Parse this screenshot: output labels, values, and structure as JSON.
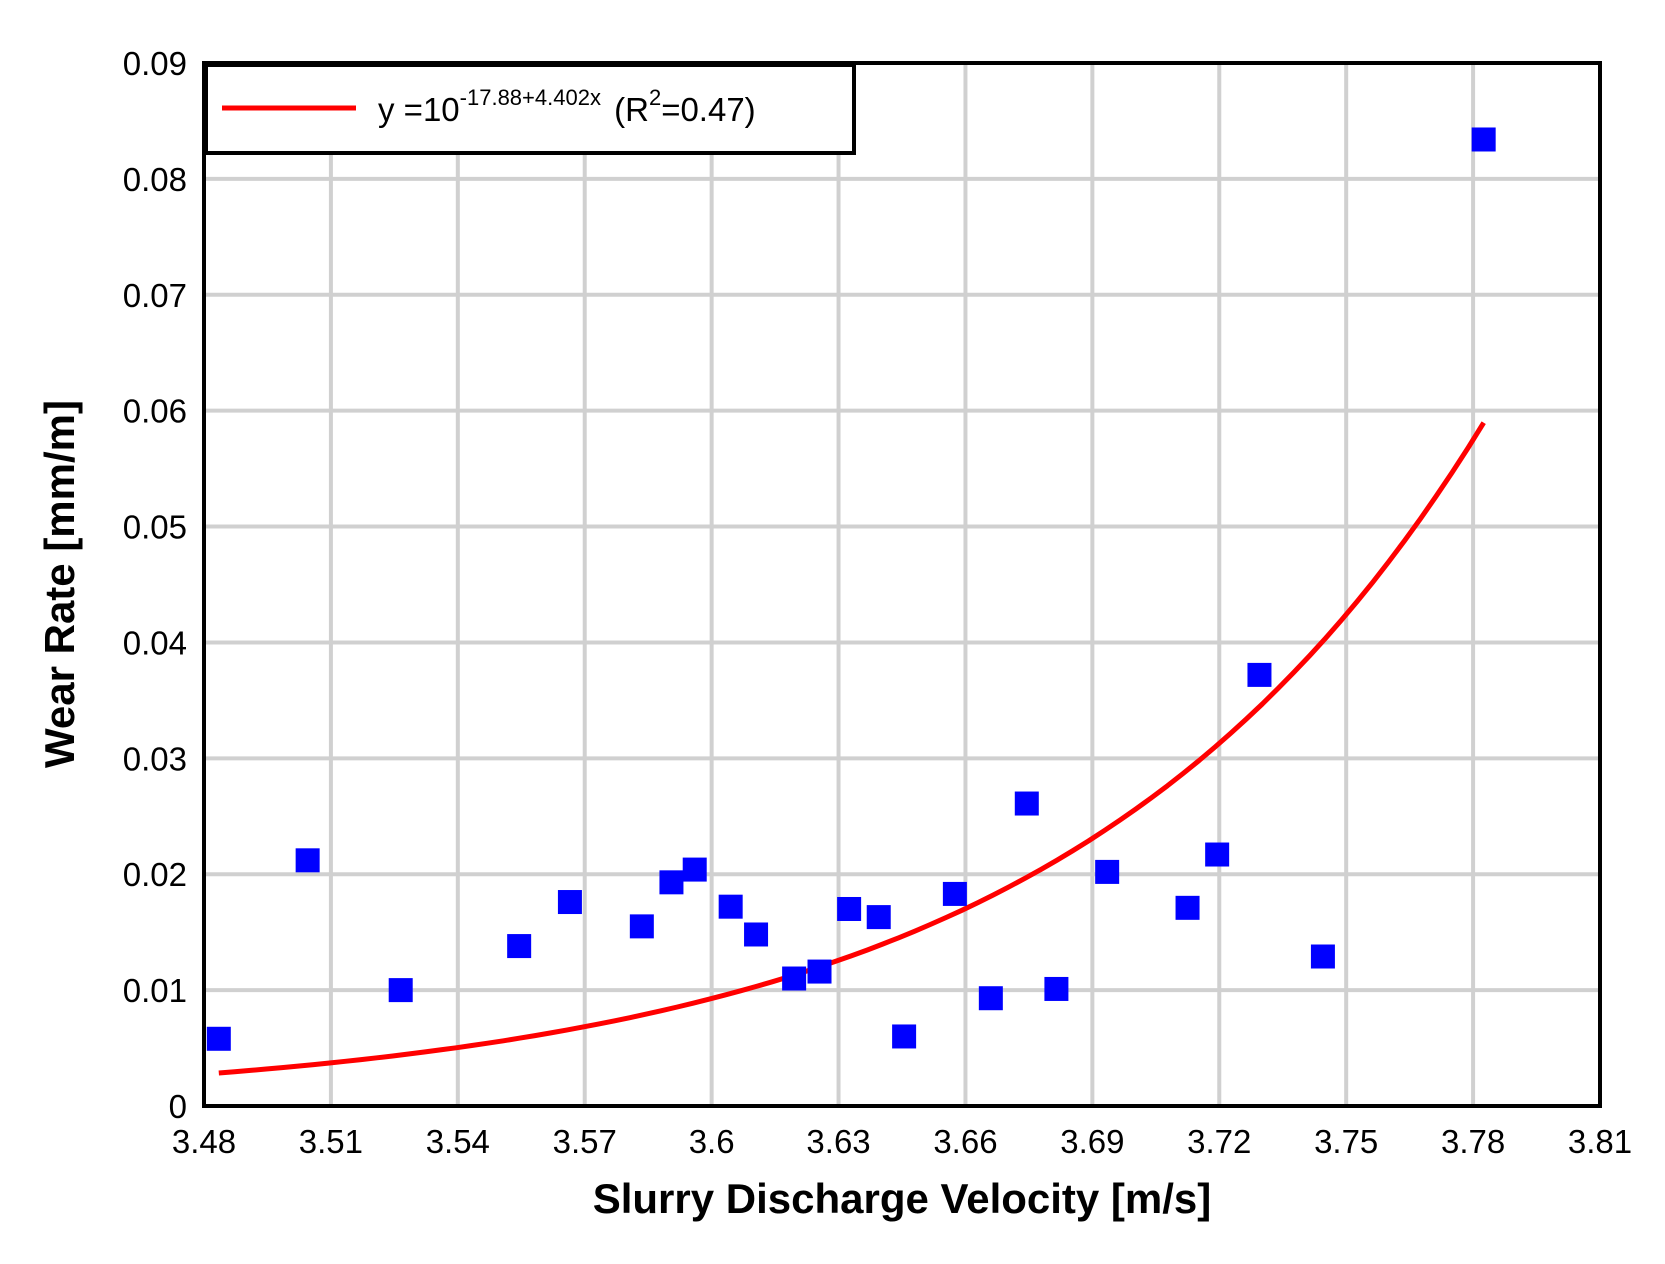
{
  "chart_data": {
    "type": "scatter",
    "xlabel": "Slurry Discharge Velocity [m/s]",
    "ylabel": "Wear Rate [mm/m]",
    "xlim": [
      3.48,
      3.81
    ],
    "ylim": [
      0,
      0.09
    ],
    "xticks": [
      3.48,
      3.51,
      3.54,
      3.57,
      3.6,
      3.63,
      3.66,
      3.69,
      3.72,
      3.75,
      3.78,
      3.81
    ],
    "xtick_labels": [
      "3.48",
      "3.51",
      "3.54",
      "3.57",
      "3.6",
      "3.63",
      "3.66",
      "3.69",
      "3.72",
      "3.75",
      "3.78",
      "3.81"
    ],
    "yticks": [
      0,
      0.01,
      0.02,
      0.03,
      0.04,
      0.05,
      0.06,
      0.07,
      0.08,
      0.09
    ],
    "ytick_labels": [
      "0",
      "0.01",
      "0.02",
      "0.03",
      "0.04",
      "0.05",
      "0.06",
      "0.07",
      "0.08",
      "0.09"
    ],
    "grid": true,
    "legend_position": "top-left",
    "legend": {
      "prefix": "y =10",
      "exponent": "-17.88+4.402x",
      "r_open": " (R",
      "r_sup": "2",
      "r_close": "=0.47)"
    },
    "points": {
      "color": "#0000ff",
      "x": [
        3.4835,
        3.5045,
        3.5265,
        3.5545,
        3.5665,
        3.5835,
        3.5905,
        3.596,
        3.6045,
        3.6105,
        3.6195,
        3.6255,
        3.6325,
        3.6395,
        3.6455,
        3.6575,
        3.666,
        3.6745,
        3.6815,
        3.6935,
        3.7125,
        3.7195,
        3.7295,
        3.7445,
        3.7825
      ],
      "y": [
        0.0058,
        0.0212,
        0.01,
        0.0138,
        0.0176,
        0.0155,
        0.0193,
        0.0204,
        0.0172,
        0.0148,
        0.011,
        0.0116,
        0.017,
        0.0163,
        0.006,
        0.0183,
        0.0093,
        0.0261,
        0.0101,
        0.0202,
        0.0171,
        0.0217,
        0.0372,
        0.0129,
        0.0834
      ]
    },
    "fit": {
      "color": "#ff0000",
      "intercept": -17.88,
      "slope": 4.402,
      "x_start": 3.4835,
      "x_end": 3.7825
    }
  }
}
